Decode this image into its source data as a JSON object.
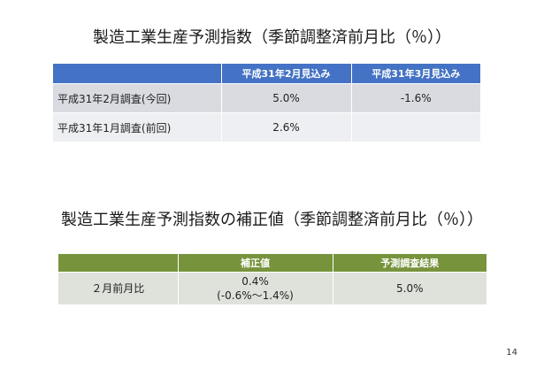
{
  "section1": {
    "title": "製造工業生産予測指数（季節調整済前月比（％））",
    "columns": [
      "平成31年2月見込み",
      "平成31年3月見込み"
    ],
    "rows": [
      {
        "label": "平成31年2月調査(今回)",
        "values": [
          "5.0%",
          "-1.6%"
        ]
      },
      {
        "label": "平成31年1月調査(前回)",
        "values": [
          "2.6%",
          ""
        ]
      }
    ]
  },
  "section2": {
    "title": "製造工業生産予測指数の補正値（季節調整済前月比（％））",
    "columns": [
      "補正値",
      "予測調査結果"
    ],
    "rows": [
      {
        "label": "２月前月比",
        "correction": "0.4%",
        "correction_range": "(-0.6%～1.4%)",
        "survey": "5.0%"
      }
    ]
  },
  "page_number": "14"
}
